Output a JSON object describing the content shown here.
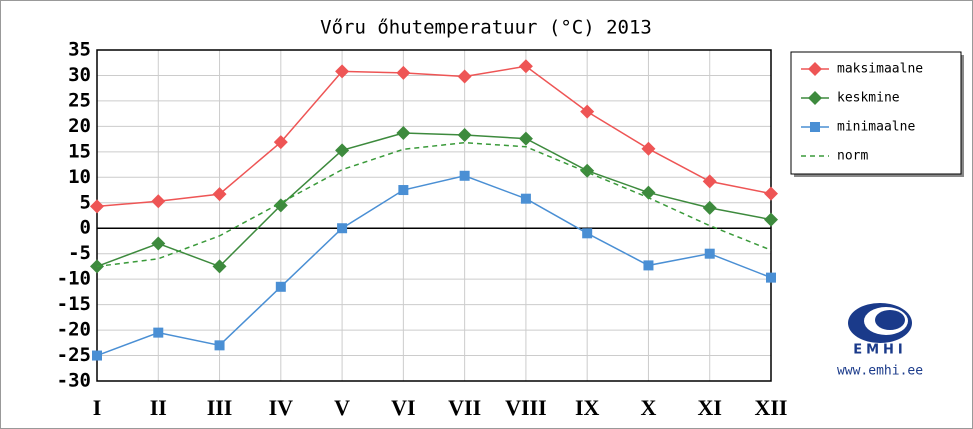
{
  "chart_data": {
    "type": "line",
    "title": "Vőru őhutemperatuur (°C) 2013",
    "categories": [
      "I",
      "II",
      "III",
      "IV",
      "V",
      "VI",
      "VII",
      "VIII",
      "IX",
      "X",
      "XI",
      "XII"
    ],
    "series": [
      {
        "name": "maksimaalne",
        "color": "#ee5555",
        "marker": "diamond",
        "values": [
          4.3,
          5.3,
          6.7,
          16.9,
          30.8,
          30.5,
          29.8,
          31.8,
          22.9,
          15.6,
          9.2,
          6.8
        ]
      },
      {
        "name": "keskmine",
        "color": "#3d8a3d",
        "marker": "diamond",
        "values": [
          -7.5,
          -3,
          -7.5,
          4.5,
          15.3,
          18.7,
          18.3,
          17.6,
          11.3,
          7,
          4,
          1.7
        ]
      },
      {
        "name": "minimaalne",
        "color": "#4a8fd4",
        "marker": "square",
        "values": [
          -25,
          -20.5,
          -23,
          -11.5,
          0,
          7.5,
          10.3,
          5.8,
          -1,
          -7.3,
          -5,
          -9.7
        ]
      },
      {
        "name": "norm",
        "color": "#3a9a3a",
        "dash": true,
        "values": [
          -7.5,
          -6,
          -1.5,
          5,
          11.5,
          15.5,
          16.8,
          16,
          11,
          6,
          0.5,
          -4.3
        ]
      }
    ],
    "ylim": [
      -30,
      35
    ],
    "yticks": [
      -30,
      -25,
      -20,
      -15,
      -10,
      -5,
      0,
      5,
      10,
      15,
      20,
      25,
      30,
      35
    ],
    "grid": true,
    "legend": "right",
    "annotations": [
      "EMHI",
      "www.emhi.ee"
    ]
  }
}
